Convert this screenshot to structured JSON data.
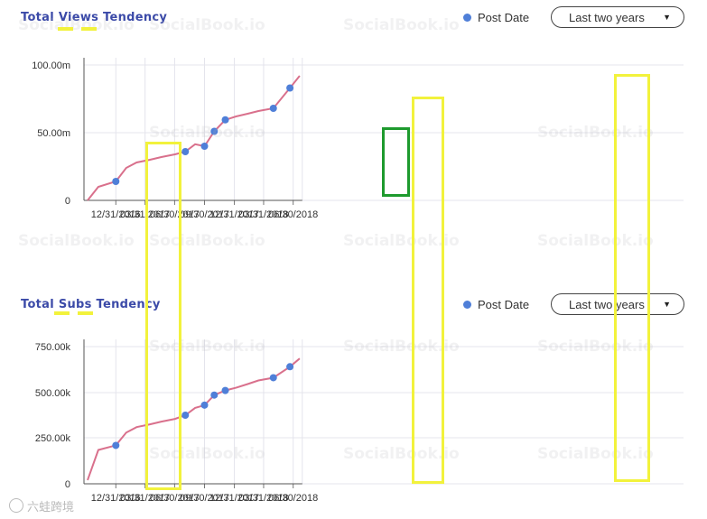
{
  "watermark_text": "SocialBook.io",
  "footer_text": "六蛙跨境",
  "legend": {
    "label": "Post Date",
    "dot_color": "#4f7fd8"
  },
  "range_select": {
    "value": "Last two years"
  },
  "colors": {
    "line": "#d9708c",
    "point": "#4f7fd8",
    "highlight_yellow": "#f2f23c",
    "highlight_green": "#1e9a2e",
    "grid": "#e4e4ec"
  },
  "chart_data": [
    {
      "type": "line",
      "title": "Total Views Tendency",
      "x_ticks": [
        "12/31/2016",
        "03/31/2017",
        "06/30/2017",
        "09/30/2017",
        "12/31/2017",
        "03/31/2018",
        "06/30/2018"
      ],
      "y_ticks": [
        "100.00m",
        "50.00m",
        "0"
      ],
      "ylim": [
        0,
        100
      ],
      "x": [
        "2016-10-05",
        "2016-11-07",
        "2016-12-31",
        "2017-02-01",
        "2017-03-05",
        "2017-04-15",
        "2017-05-20",
        "2017-07-01",
        "2017-08-02",
        "2017-09-01",
        "2017-09-30",
        "2017-10-30",
        "2017-12-03",
        "2018-01-05",
        "2018-02-10",
        "2018-03-15",
        "2018-04-30",
        "2018-06-20",
        "2018-07-20"
      ],
      "values": [
        0,
        10,
        14,
        24,
        28,
        30,
        32,
        34,
        36,
        41.5,
        40,
        51,
        59.5,
        62,
        64,
        66,
        68,
        83,
        92
      ],
      "post_dates": [
        {
          "x": "2016-12-31",
          "y": 14
        },
        {
          "x": "2017-08-02",
          "y": 36
        },
        {
          "x": "2017-09-30",
          "y": 40
        },
        {
          "x": "2017-10-30",
          "y": 51
        },
        {
          "x": "2017-12-03",
          "y": 59.5
        },
        {
          "x": "2018-04-30",
          "y": 68
        },
        {
          "x": "2018-06-20",
          "y": 83
        }
      ]
    },
    {
      "type": "line",
      "title": "Total Subs Tendency",
      "x_ticks": [
        "12/31/2016",
        "03/31/2017",
        "06/30/2017",
        "09/30/2017",
        "12/31/2017",
        "03/31/2018",
        "06/30/2018"
      ],
      "y_ticks": [
        "750.00k",
        "500.00k",
        "250.00k",
        "0"
      ],
      "ylim": [
        0,
        750
      ],
      "x": [
        "2016-10-05",
        "2016-11-07",
        "2016-12-31",
        "2017-02-01",
        "2017-03-05",
        "2017-04-15",
        "2017-05-20",
        "2017-07-01",
        "2017-08-02",
        "2017-09-01",
        "2017-09-30",
        "2017-10-30",
        "2017-12-03",
        "2018-01-05",
        "2018-02-10",
        "2018-03-15",
        "2018-04-30",
        "2018-06-20",
        "2018-07-20"
      ],
      "values": [
        20,
        185,
        210,
        280,
        310,
        325,
        340,
        355,
        375,
        415,
        430,
        485,
        510,
        525,
        545,
        565,
        580,
        640,
        685
      ],
      "post_dates": [
        {
          "x": "2016-12-31",
          "y": 210
        },
        {
          "x": "2017-08-02",
          "y": 375
        },
        {
          "x": "2017-09-30",
          "y": 430
        },
        {
          "x": "2017-10-30",
          "y": 485
        },
        {
          "x": "2017-12-03",
          "y": 510
        },
        {
          "x": "2018-04-30",
          "y": 580
        },
        {
          "x": "2018-06-20",
          "y": 640
        }
      ]
    }
  ]
}
